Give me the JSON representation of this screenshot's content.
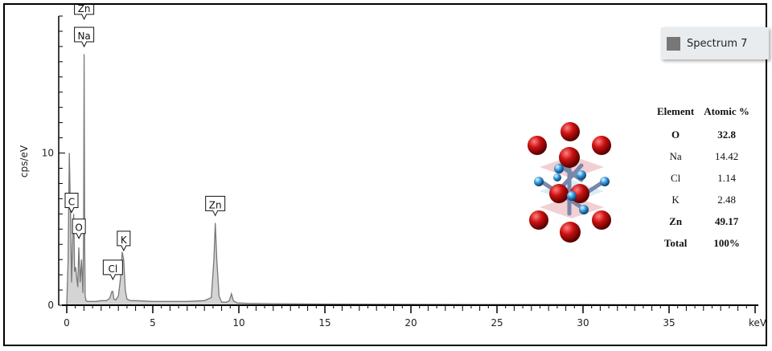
{
  "chart_data": {
    "type": "line",
    "ylabel": "cps/eV",
    "xlabel": "keV",
    "xlim": [
      0,
      40
    ],
    "ylim": [
      0,
      19
    ],
    "x_ticks": [
      0,
      5,
      10,
      15,
      20,
      25,
      30,
      35
    ],
    "y_ticks": [
      0,
      10
    ],
    "series": [
      {
        "name": "Spectrum 7",
        "color": "#777777",
        "x": [
          0.0,
          0.08,
          0.15,
          0.22,
          0.28,
          0.34,
          0.4,
          0.46,
          0.52,
          0.58,
          0.64,
          0.7,
          0.78,
          0.86,
          0.94,
          0.98,
          1.01,
          1.04,
          1.07,
          1.12,
          1.2,
          1.4,
          1.7,
          2.0,
          2.3,
          2.5,
          2.62,
          2.68,
          2.74,
          2.85,
          3.0,
          3.15,
          3.22,
          3.31,
          3.4,
          3.5,
          3.7,
          4.0,
          5.0,
          6.0,
          7.0,
          8.0,
          8.4,
          8.55,
          8.63,
          8.72,
          8.85,
          9.0,
          9.3,
          9.45,
          9.57,
          9.68,
          9.9,
          10.5,
          12.0,
          15.0,
          20.0,
          25.0,
          30.0,
          35.0,
          40.0
        ],
        "y": [
          0.0,
          3.0,
          10.0,
          6.0,
          1.5,
          4.0,
          6.0,
          2.2,
          2.5,
          1.8,
          1.2,
          3.8,
          1.5,
          3.0,
          0.8,
          5.0,
          16.5,
          4.0,
          0.6,
          0.3,
          0.25,
          0.25,
          0.25,
          0.3,
          0.3,
          0.45,
          0.9,
          0.9,
          0.4,
          0.35,
          0.6,
          2.0,
          3.5,
          3.0,
          1.0,
          0.4,
          0.3,
          0.3,
          0.25,
          0.25,
          0.25,
          0.3,
          0.5,
          3.0,
          5.4,
          3.0,
          0.6,
          0.2,
          0.2,
          0.3,
          0.75,
          0.3,
          0.15,
          0.12,
          0.1,
          0.08,
          0.06,
          0.05,
          0.04,
          0.03,
          0.02
        ]
      }
    ],
    "peak_labels": [
      {
        "text": "Zn",
        "x": 1.01,
        "y": 18.9
      },
      {
        "text": "Na",
        "x": 1.01,
        "y": 17.1
      },
      {
        "text": "C",
        "x": 0.28,
        "y": 6.2
      },
      {
        "text": "O",
        "x": 0.52,
        "y": 4.5
      },
      {
        "text": "Cl",
        "x": 2.68,
        "y": 1.8
      },
      {
        "text": "K",
        "x": 3.31,
        "y": 3.7
      },
      {
        "text": "Zn",
        "x": 8.63,
        "y": 6.0
      }
    ],
    "legend": {
      "label": "Spectrum 7",
      "color": "#777777",
      "placement": "top-right"
    }
  },
  "atomic_table": {
    "headers": [
      "Element",
      "Atomic %"
    ],
    "rows": [
      {
        "element": "O",
        "value": "32.8",
        "bold": true
      },
      {
        "element": "Na",
        "value": "14.42",
        "bold": false
      },
      {
        "element": "Cl",
        "value": "1.14",
        "bold": false
      },
      {
        "element": "K",
        "value": "2.48",
        "bold": false
      },
      {
        "element": "Zn",
        "value": "49.17",
        "bold": true
      },
      {
        "element": "Total",
        "value": "100%",
        "bold": true
      }
    ]
  },
  "crystal_colors": {
    "large_atom": "#cc1111",
    "small_atom": "#3399dd",
    "plane": "#e8a0a8"
  }
}
